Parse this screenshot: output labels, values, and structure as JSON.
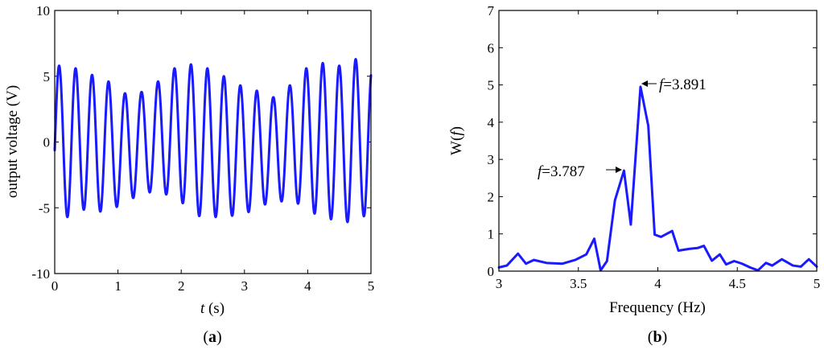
{
  "colors": {
    "series": "#1a1aff",
    "axes": "#000000"
  },
  "chart_data": [
    {
      "type": "line",
      "panel_label": "a",
      "xlabel_italic": "t",
      "xlabel_rest": " (s)",
      "ylabel": "output voltage (V)",
      "xlim": [
        0,
        5
      ],
      "ylim": [
        -10,
        10
      ],
      "xticks": [
        0,
        1,
        2,
        3,
        4,
        5
      ],
      "yticks": [
        -10,
        -5,
        0,
        5,
        10
      ],
      "grid": false,
      "series": [
        {
          "signal": "beating sinusoid",
          "frequencies_hz": [
            3.787,
            3.891
          ],
          "peak_values": [
            5.8,
            5.6,
            5.1,
            4.6,
            3.7,
            3.8,
            4.6,
            5.6,
            5.9,
            5.6,
            5.0,
            4.3,
            3.9,
            3.4,
            4.3,
            5.6,
            6.0,
            5.8,
            6.3,
            5.6
          ],
          "trough_values": [
            -5.7,
            -5.1,
            -5.3,
            -4.9,
            -4.2,
            -3.8,
            -4.0,
            -4.7,
            -5.7,
            -5.7,
            -5.6,
            -5.3,
            -4.7,
            -4.5,
            -4.7,
            -5.5,
            -5.9,
            -6.1,
            -5.6,
            -5.1
          ]
        }
      ]
    },
    {
      "type": "line",
      "panel_label": "b",
      "xlabel": "Frequency (Hz)",
      "ylabel_pre": "W(",
      "ylabel_italic": "f",
      "ylabel_post": ")",
      "xlim": [
        3,
        5
      ],
      "ylim": [
        0,
        7
      ],
      "xticks": [
        "3",
        "3.5",
        "4",
        "4.5",
        "5"
      ],
      "yticks": [
        0,
        1,
        2,
        3,
        4,
        5,
        6,
        7
      ],
      "grid": false,
      "series": [
        {
          "x": [
            3.0,
            3.05,
            3.12,
            3.17,
            3.22,
            3.3,
            3.4,
            3.48,
            3.55,
            3.6,
            3.64,
            3.68,
            3.73,
            3.787,
            3.83,
            3.891,
            3.94,
            3.98,
            4.02,
            4.09,
            4.13,
            4.2,
            4.25,
            4.29,
            4.34,
            4.39,
            4.43,
            4.48,
            4.53,
            4.58,
            4.63,
            4.68,
            4.72,
            4.78,
            4.85,
            4.9,
            4.95,
            5.0
          ],
          "y": [
            0.1,
            0.15,
            0.47,
            0.2,
            0.3,
            0.22,
            0.2,
            0.3,
            0.45,
            0.87,
            0.02,
            0.27,
            1.9,
            2.7,
            1.25,
            4.95,
            3.9,
            0.98,
            0.92,
            1.08,
            0.55,
            0.6,
            0.62,
            0.68,
            0.28,
            0.45,
            0.18,
            0.27,
            0.2,
            0.1,
            0.02,
            0.22,
            0.15,
            0.32,
            0.15,
            0.12,
            0.32,
            0.12
          ]
        }
      ],
      "annotations": [
        {
          "italic": "f",
          "text": "=3.891",
          "x": 3.891,
          "y": 4.95
        },
        {
          "italic": "f",
          "text": "=3.787",
          "x": 3.787,
          "y": 2.7
        }
      ]
    }
  ]
}
